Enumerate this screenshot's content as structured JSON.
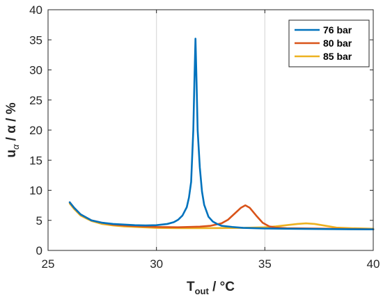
{
  "chart_data": {
    "type": "line",
    "xlabel": {
      "main": "T",
      "sub": "out",
      "rest": " / °C"
    },
    "ylabel": {
      "main": "u",
      "sub": "α",
      "rest": " / α / %"
    },
    "xlim": [
      25,
      40
    ],
    "ylim": [
      0,
      40
    ],
    "x_ticks": [
      25,
      30,
      35,
      40
    ],
    "y_ticks": [
      0,
      5,
      10,
      15,
      20,
      25,
      30,
      35,
      40
    ],
    "x_tick_labels": [
      "25",
      "30",
      "35",
      "40"
    ],
    "y_tick_labels": [
      "0",
      "5",
      "10",
      "15",
      "20",
      "25",
      "30",
      "35",
      "40"
    ],
    "grid": true,
    "legend_position": "top-right",
    "series": [
      {
        "name": "76 bar",
        "color": "#0072BD",
        "x": [
          26.0,
          26.2,
          26.5,
          27.0,
          27.5,
          28.0,
          28.5,
          29.0,
          29.5,
          30.0,
          30.5,
          30.8,
          31.0,
          31.2,
          31.4,
          31.5,
          31.6,
          31.7,
          31.75,
          31.8,
          31.85,
          31.9,
          32.0,
          32.1,
          32.2,
          32.4,
          32.6,
          32.8,
          33.0,
          33.5,
          34.0,
          35.0,
          36.0,
          37.0,
          38.0,
          39.0,
          40.0
        ],
        "y": [
          8.0,
          7.1,
          6.0,
          5.0,
          4.6,
          4.4,
          4.3,
          4.2,
          4.15,
          4.2,
          4.4,
          4.7,
          5.1,
          5.8,
          7.2,
          8.8,
          11.4,
          20.0,
          28.0,
          35.2,
          28.0,
          20.0,
          13.8,
          9.8,
          7.6,
          5.6,
          4.8,
          4.4,
          4.1,
          3.9,
          3.75,
          3.65,
          3.6,
          3.58,
          3.55,
          3.52,
          3.5
        ]
      },
      {
        "name": "80 bar",
        "color": "#D95319",
        "x": [
          26.0,
          26.2,
          26.5,
          27.0,
          27.5,
          28.0,
          28.5,
          29.0,
          30.0,
          31.0,
          32.0,
          32.5,
          33.0,
          33.3,
          33.6,
          33.9,
          34.1,
          34.3,
          34.6,
          34.9,
          35.2,
          35.5,
          36.0,
          37.0,
          38.0,
          39.0,
          40.0
        ],
        "y": [
          8.0,
          7.1,
          6.0,
          5.0,
          4.6,
          4.3,
          4.15,
          4.05,
          3.9,
          3.85,
          3.95,
          4.1,
          4.5,
          5.1,
          6.1,
          7.1,
          7.5,
          7.1,
          5.8,
          4.6,
          4.0,
          3.8,
          3.7,
          3.65,
          3.6,
          3.55,
          3.5
        ]
      },
      {
        "name": "85 bar",
        "color": "#EDB120",
        "x": [
          26.0,
          26.2,
          26.5,
          27.0,
          27.5,
          28.0,
          28.5,
          29.0,
          30.0,
          31.0,
          32.0,
          33.0,
          34.0,
          35.0,
          35.5,
          36.0,
          36.5,
          36.9,
          37.3,
          37.8,
          38.3,
          39.0,
          40.0
        ],
        "y": [
          7.8,
          6.9,
          5.8,
          4.9,
          4.4,
          4.15,
          4.0,
          3.9,
          3.75,
          3.7,
          3.7,
          3.72,
          3.75,
          3.85,
          4.0,
          4.2,
          4.4,
          4.5,
          4.4,
          4.1,
          3.8,
          3.7,
          3.6
        ]
      }
    ]
  }
}
